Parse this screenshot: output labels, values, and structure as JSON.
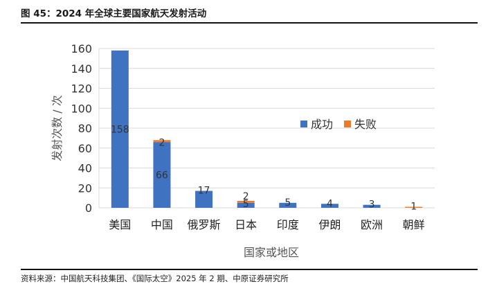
{
  "figure_title": "图 45：2024 年全球主要国家航天发射活动",
  "source_note": "资料来源：中国航天科技集团、《国际太空》2025 年 2 期、中原证券研究所",
  "chart_data": {
    "type": "bar",
    "stacked": true,
    "categories": [
      "美国",
      "中国",
      "俄罗斯",
      "日本",
      "印度",
      "伊朗",
      "欧洲",
      "朝鲜"
    ],
    "series": [
      {
        "name": "成功",
        "color": "#3f72c0",
        "values": [
          158,
          66,
          17,
          5,
          5,
          4,
          3,
          0
        ]
      },
      {
        "name": "失败",
        "color": "#ec7c2d",
        "values": [
          0,
          2,
          0,
          2,
          0,
          0,
          0,
          1
        ]
      }
    ],
    "xlabel": "国家或地区",
    "ylabel": "发射次数 / 次",
    "ylim": [
      0,
      160
    ],
    "yticks": [
      0,
      20,
      40,
      60,
      80,
      100,
      120,
      140,
      160
    ],
    "grid": true,
    "legend": "right-middle"
  }
}
